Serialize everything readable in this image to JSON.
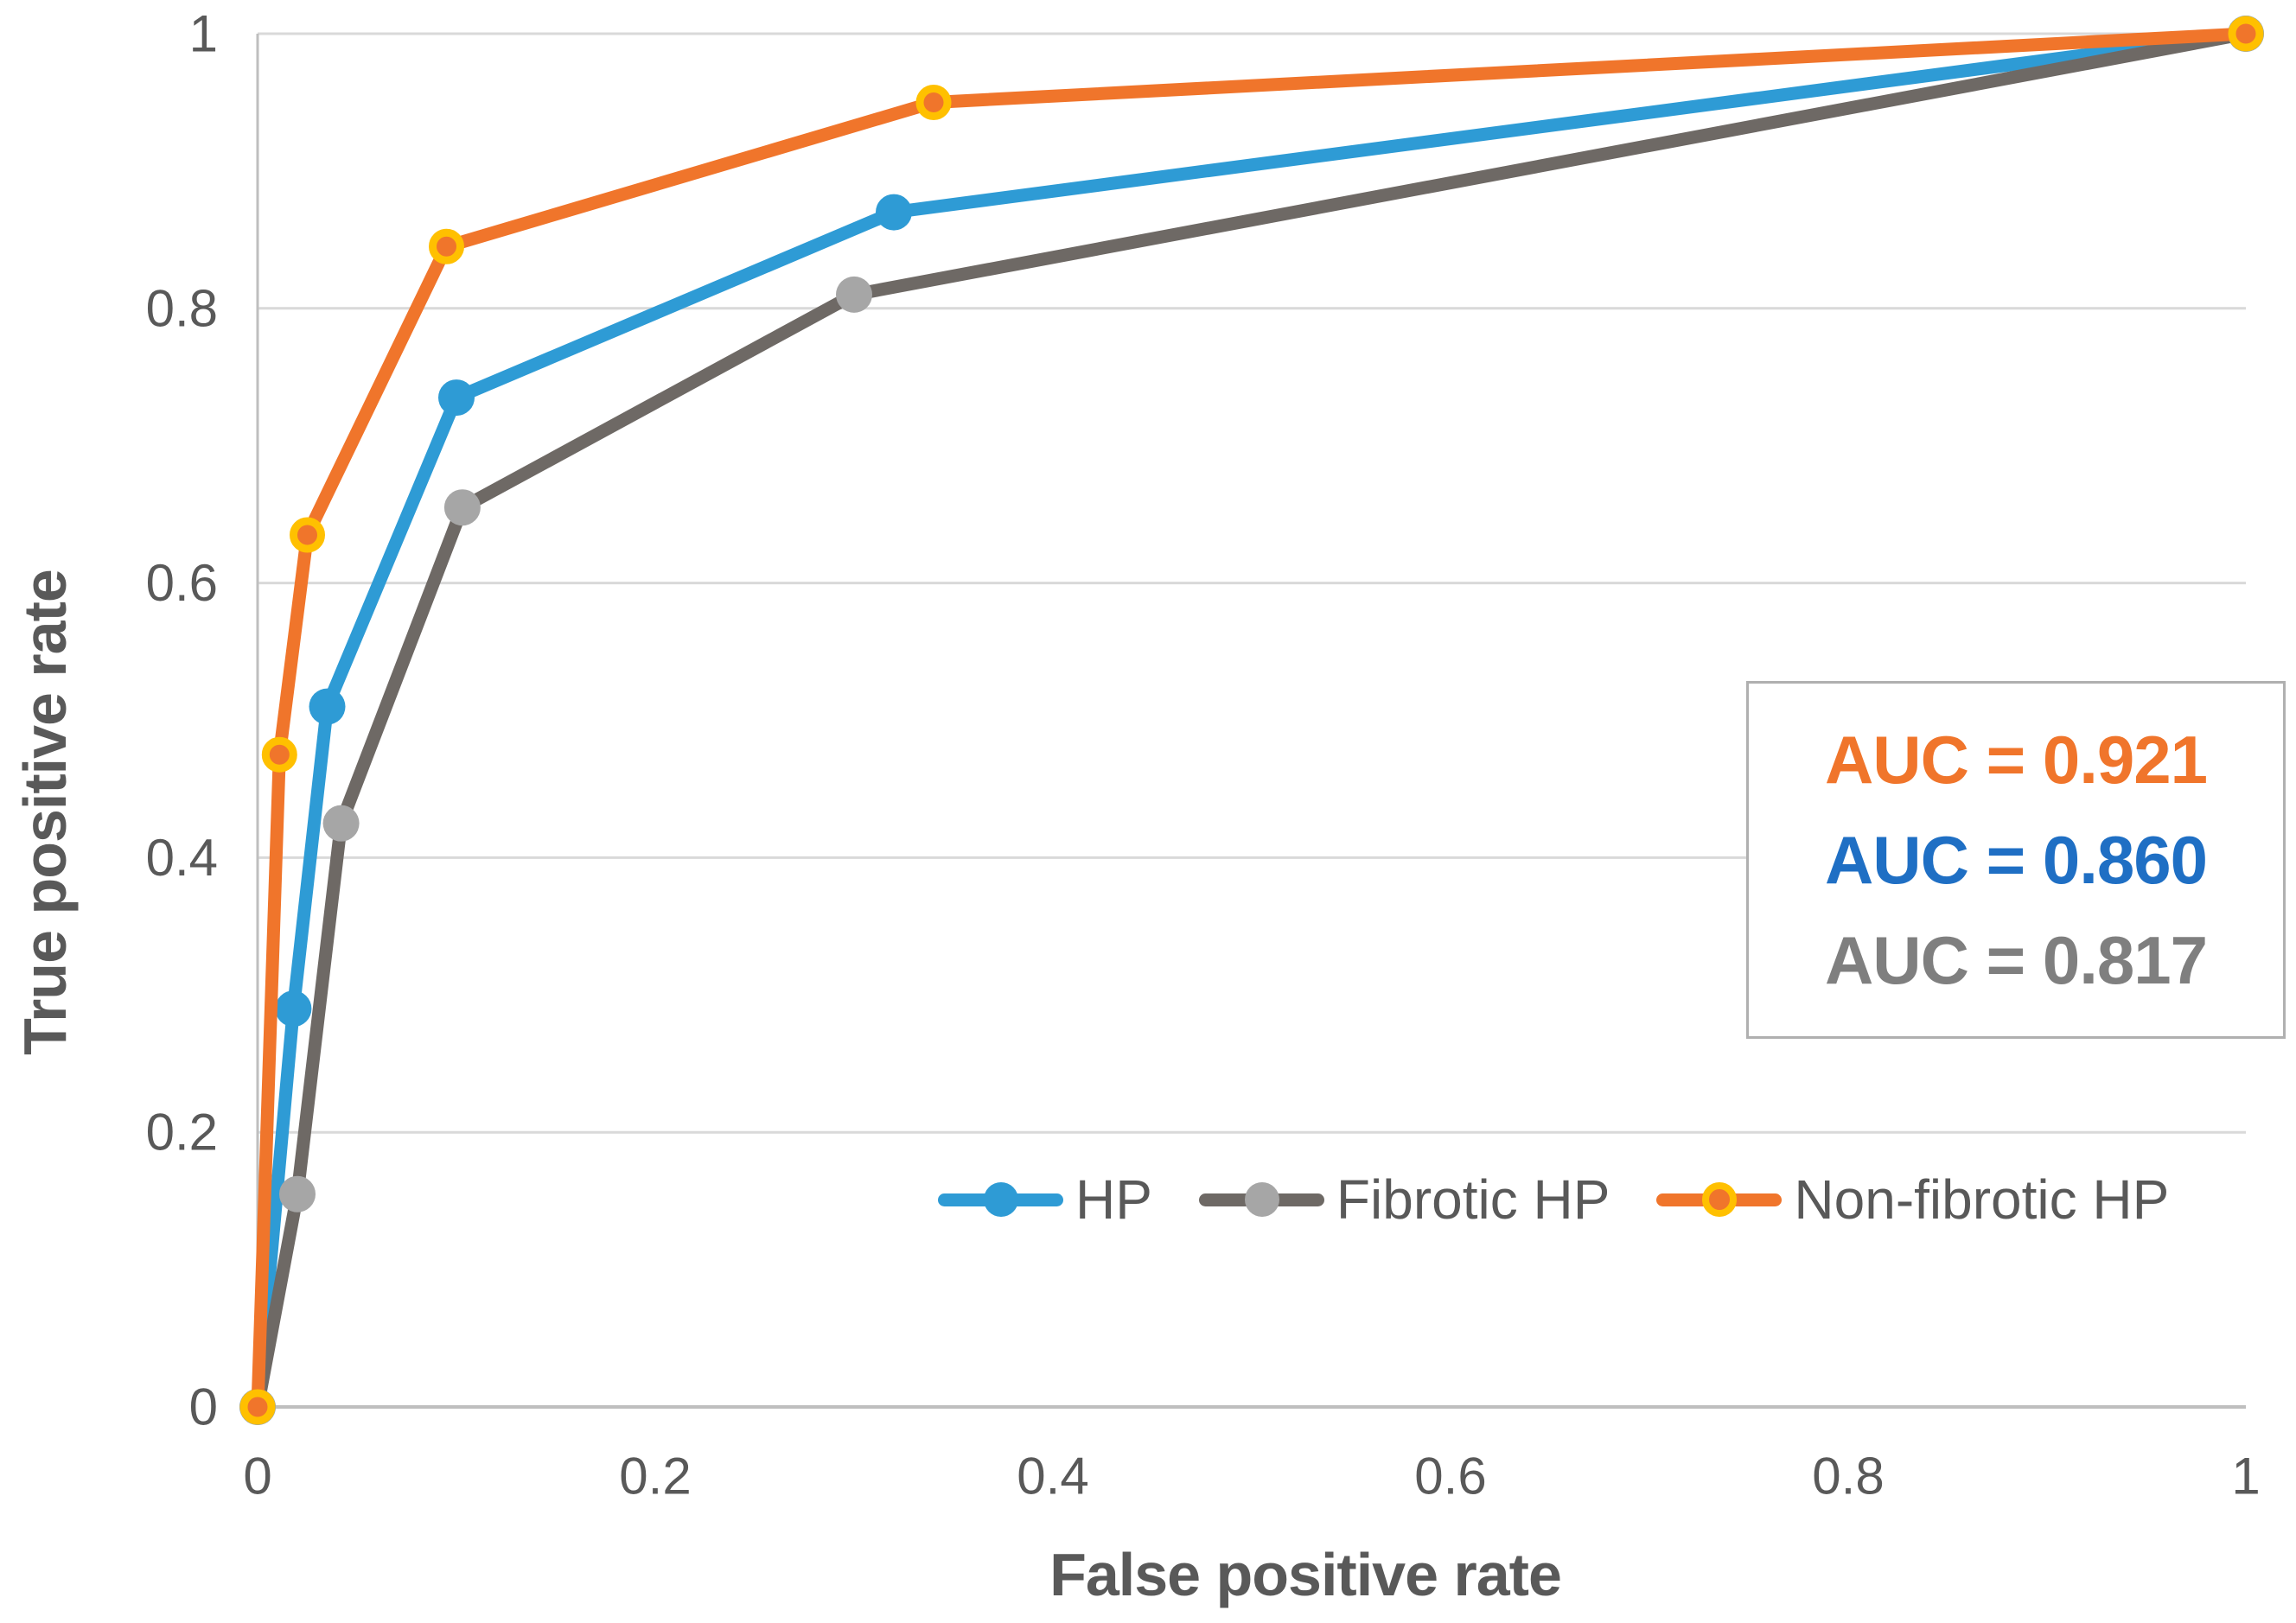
{
  "figure": {
    "background": "#ffffff"
  },
  "chart_data": {
    "type": "line",
    "title": "",
    "xlabel": "False positive rate",
    "ylabel": "True positive rate",
    "xlim": [
      0,
      1
    ],
    "ylim": [
      0,
      1
    ],
    "grid": "horizontal",
    "gridline_color": "#d9d9d9",
    "axis_line_color": "#bfbfbf",
    "axis_text_color": "#595959",
    "x_ticks": {
      "values": [
        0,
        0.2,
        0.4,
        0.6,
        0.8,
        1
      ],
      "labels": [
        "0",
        "0.2",
        "0.4",
        "0.6",
        "0.8",
        "1"
      ]
    },
    "y_ticks": {
      "values": [
        0,
        0.2,
        0.4,
        0.6,
        0.8,
        1
      ],
      "labels": [
        "0",
        "0.2",
        "0.4",
        "0.6",
        "0.8",
        "1"
      ]
    },
    "legend_position": "inside-bottom-right",
    "series": [
      {
        "name": "HP",
        "line_color": "#2e9bd5",
        "marker_color": "#2e9bd5",
        "marker_ring_color": null,
        "auc_value": 0.86,
        "points": [
          [
            0,
            0
          ],
          [
            0.018,
            0.29
          ],
          [
            0.035,
            0.51
          ],
          [
            0.1,
            0.735
          ],
          [
            0.32,
            0.87
          ],
          [
            1,
            1
          ]
        ]
      },
      {
        "name": "Fibrotic HP",
        "line_color": "#6e6965",
        "marker_color": "#a6a6a6",
        "marker_ring_color": null,
        "auc_value": 0.817,
        "points": [
          [
            0,
            0
          ],
          [
            0.02,
            0.155
          ],
          [
            0.042,
            0.425
          ],
          [
            0.103,
            0.655
          ],
          [
            0.3,
            0.81
          ],
          [
            1,
            1
          ]
        ]
      },
      {
        "name": "Non-fibrotic HP",
        "line_color": "#f0752b",
        "marker_color": "#f0752b",
        "marker_ring_color": "#ffc000",
        "auc_value": 0.921,
        "points": [
          [
            0,
            0
          ],
          [
            0.011,
            0.475
          ],
          [
            0.025,
            0.635
          ],
          [
            0.095,
            0.845
          ],
          [
            0.34,
            0.95
          ],
          [
            1,
            1
          ]
        ]
      }
    ],
    "annotation_box": {
      "lines": [
        {
          "text": "AUC = 0.921",
          "color": "#f0752b"
        },
        {
          "text": "AUC = 0.860",
          "color": "#1f6fc4"
        },
        {
          "text": "AUC = 0.817",
          "color": "#7f7f7f"
        }
      ]
    }
  },
  "legend": {
    "items": [
      {
        "label": "HP"
      },
      {
        "label": "Fibrotic HP"
      },
      {
        "label": "Non-fibrotic HP"
      }
    ]
  }
}
